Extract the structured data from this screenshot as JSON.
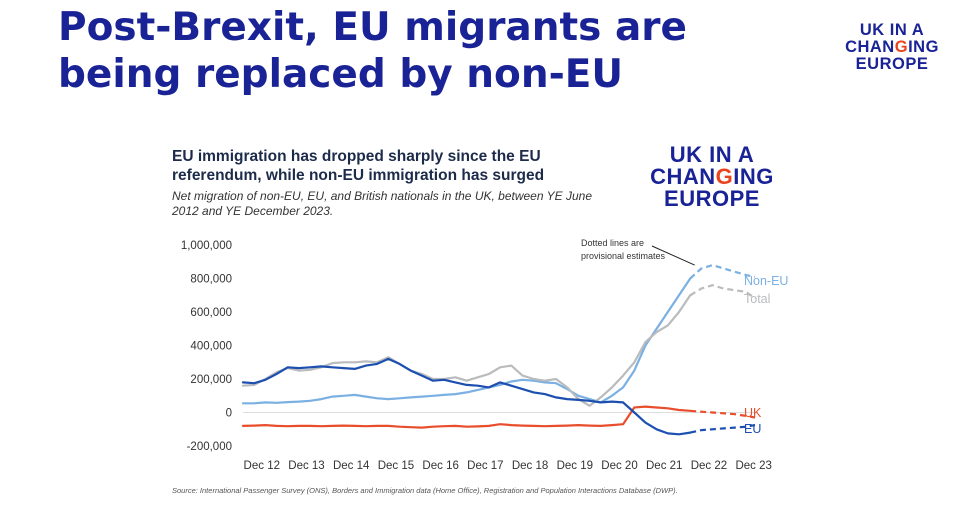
{
  "slide": {
    "title_line1": "Post-Brexit, EU migrants are",
    "title_line2": "being replaced by non-EU"
  },
  "logo": {
    "line1": "UK IN A",
    "line2_part1": "CHAN",
    "line2_accent": "G",
    "line2_part2": "ING",
    "line3": "EUROPE"
  },
  "chart_source": "Source: International Passenger Survey (ONS), Borders and Immigration data (Home Office), Registration and Population Interactions Database (DWP).",
  "colors": {
    "non_eu": "#7ab0e2",
    "total": "#b9bbbd",
    "uk": "#e84e2c",
    "eu": "#1c4fb0",
    "title_blue": "#1a2396",
    "accent": "#e8451e"
  },
  "chart_data": {
    "type": "line",
    "title": "EU immigration has dropped sharply since the EU referendum, while non-EU immigration has surged",
    "title_line1": "EU immigration has dropped sharply since the EU",
    "title_line2": "referendum, while non-EU immigration has surged",
    "subtitle_line1": "Net migration of non-EU, EU, and British nationals in the UK, between YE June",
    "subtitle_line2": "2012 and YE December 2023.",
    "xlabel": "",
    "ylabel": "",
    "x_range": [
      2012.5,
      2023.95
    ],
    "ylim": [
      -200000,
      1000000
    ],
    "y_ticks": [
      -200000,
      0,
      200000,
      400000,
      600000,
      800000,
      1000000
    ],
    "y_tick_labels": [
      "-200,000",
      "0",
      "200,000",
      "400,000",
      "600,000",
      "800,000",
      "1,000,000"
    ],
    "x_ticks": [
      2012.92,
      2013.92,
      2014.92,
      2015.92,
      2016.92,
      2017.92,
      2018.92,
      2019.92,
      2020.92,
      2021.92,
      2022.92,
      2023.92
    ],
    "x_tick_labels": [
      "Dec 12",
      "Dec 13",
      "Dec 14",
      "Dec 15",
      "Dec 16",
      "Dec 17",
      "Dec 18",
      "Dec 19",
      "Dec 20",
      "Dec 21",
      "Dec 22",
      "Dec 23"
    ],
    "grid": false,
    "annotation": {
      "line1": "Dotted lines are",
      "line2": "provisional estimates",
      "points_to_x": 2022.6,
      "points_to_y": 880000
    },
    "provisional_from_x": 2022.5,
    "series": [
      {
        "name": "Non-EU",
        "color_key": "non_eu",
        "x": [
          2012.5,
          2012.75,
          2013.0,
          2013.25,
          2013.5,
          2013.75,
          2014.0,
          2014.25,
          2014.5,
          2014.75,
          2015.0,
          2015.25,
          2015.5,
          2015.75,
          2016.0,
          2016.25,
          2016.5,
          2016.75,
          2017.0,
          2017.25,
          2017.5,
          2017.75,
          2018.0,
          2018.25,
          2018.5,
          2018.75,
          2019.0,
          2019.25,
          2019.5,
          2019.75,
          2020.0,
          2020.25,
          2020.5,
          2020.75,
          2021.0,
          2021.25,
          2021.5,
          2021.75,
          2022.0,
          2022.25,
          2022.5,
          2022.75,
          2023.0,
          2023.25,
          2023.5,
          2023.75,
          2023.95
        ],
        "y": [
          55000,
          55000,
          60000,
          58000,
          62000,
          65000,
          70000,
          80000,
          95000,
          100000,
          105000,
          95000,
          85000,
          80000,
          85000,
          90000,
          95000,
          100000,
          105000,
          110000,
          120000,
          135000,
          150000,
          165000,
          185000,
          195000,
          190000,
          180000,
          175000,
          140000,
          100000,
          80000,
          60000,
          100000,
          150000,
          250000,
          400000,
          500000,
          600000,
          700000,
          800000,
          860000,
          880000,
          860000,
          840000,
          820000,
          810000
        ]
      },
      {
        "name": "Total",
        "color_key": "total",
        "x": [
          2012.5,
          2012.75,
          2013.0,
          2013.25,
          2013.5,
          2013.75,
          2014.0,
          2014.25,
          2014.5,
          2014.75,
          2015.0,
          2015.25,
          2015.5,
          2015.75,
          2016.0,
          2016.25,
          2016.5,
          2016.75,
          2017.0,
          2017.25,
          2017.5,
          2017.75,
          2018.0,
          2018.25,
          2018.5,
          2018.75,
          2019.0,
          2019.25,
          2019.5,
          2019.75,
          2020.0,
          2020.25,
          2020.5,
          2020.75,
          2021.0,
          2021.25,
          2021.5,
          2021.75,
          2022.0,
          2022.25,
          2022.5,
          2022.75,
          2023.0,
          2023.25,
          2023.5,
          2023.75,
          2023.95
        ],
        "y": [
          160000,
          165000,
          200000,
          240000,
          265000,
          250000,
          255000,
          270000,
          295000,
          300000,
          300000,
          305000,
          300000,
          330000,
          290000,
          250000,
          230000,
          200000,
          200000,
          210000,
          190000,
          210000,
          230000,
          270000,
          280000,
          220000,
          200000,
          190000,
          200000,
          150000,
          80000,
          40000,
          90000,
          150000,
          220000,
          300000,
          420000,
          480000,
          520000,
          600000,
          700000,
          740000,
          760000,
          740000,
          730000,
          720000,
          680000
        ]
      },
      {
        "name": "UK",
        "color_key": "uk",
        "x": [
          2012.5,
          2012.75,
          2013.0,
          2013.25,
          2013.5,
          2013.75,
          2014.0,
          2014.25,
          2014.5,
          2014.75,
          2015.0,
          2015.25,
          2015.5,
          2015.75,
          2016.0,
          2016.25,
          2016.5,
          2016.75,
          2017.0,
          2017.25,
          2017.5,
          2017.75,
          2018.0,
          2018.25,
          2018.5,
          2018.75,
          2019.0,
          2019.25,
          2019.5,
          2019.75,
          2020.0,
          2020.25,
          2020.5,
          2020.75,
          2021.0,
          2021.25,
          2021.5,
          2021.75,
          2022.0,
          2022.25,
          2022.5,
          2022.75,
          2023.0,
          2023.25,
          2023.5,
          2023.75,
          2023.95
        ],
        "y": [
          -80000,
          -78000,
          -75000,
          -80000,
          -82000,
          -80000,
          -80000,
          -82000,
          -80000,
          -78000,
          -80000,
          -82000,
          -80000,
          -80000,
          -85000,
          -88000,
          -90000,
          -85000,
          -82000,
          -80000,
          -85000,
          -83000,
          -80000,
          -70000,
          -75000,
          -78000,
          -80000,
          -82000,
          -80000,
          -78000,
          -75000,
          -78000,
          -80000,
          -75000,
          -70000,
          30000,
          35000,
          30000,
          25000,
          15000,
          10000,
          5000,
          0,
          -5000,
          -10000,
          -20000,
          -30000
        ]
      },
      {
        "name": "EU",
        "color_key": "eu",
        "x": [
          2012.5,
          2012.75,
          2013.0,
          2013.25,
          2013.5,
          2013.75,
          2014.0,
          2014.25,
          2014.5,
          2014.75,
          2015.0,
          2015.25,
          2015.5,
          2015.75,
          2016.0,
          2016.25,
          2016.5,
          2016.75,
          2017.0,
          2017.25,
          2017.5,
          2017.75,
          2018.0,
          2018.25,
          2018.5,
          2018.75,
          2019.0,
          2019.25,
          2019.5,
          2019.75,
          2020.0,
          2020.25,
          2020.5,
          2020.75,
          2021.0,
          2021.25,
          2021.5,
          2021.75,
          2022.0,
          2022.25,
          2022.5,
          2022.75,
          2023.0,
          2023.25,
          2023.5,
          2023.75,
          2023.95
        ],
        "y": [
          180000,
          175000,
          195000,
          230000,
          270000,
          265000,
          270000,
          275000,
          270000,
          265000,
          260000,
          280000,
          290000,
          320000,
          290000,
          250000,
          220000,
          190000,
          195000,
          180000,
          165000,
          160000,
          150000,
          180000,
          160000,
          140000,
          120000,
          110000,
          90000,
          80000,
          75000,
          70000,
          60000,
          65000,
          60000,
          0,
          -60000,
          -100000,
          -125000,
          -130000,
          -120000,
          -105000,
          -100000,
          -95000,
          -90000,
          -85000,
          -75000
        ]
      }
    ]
  }
}
